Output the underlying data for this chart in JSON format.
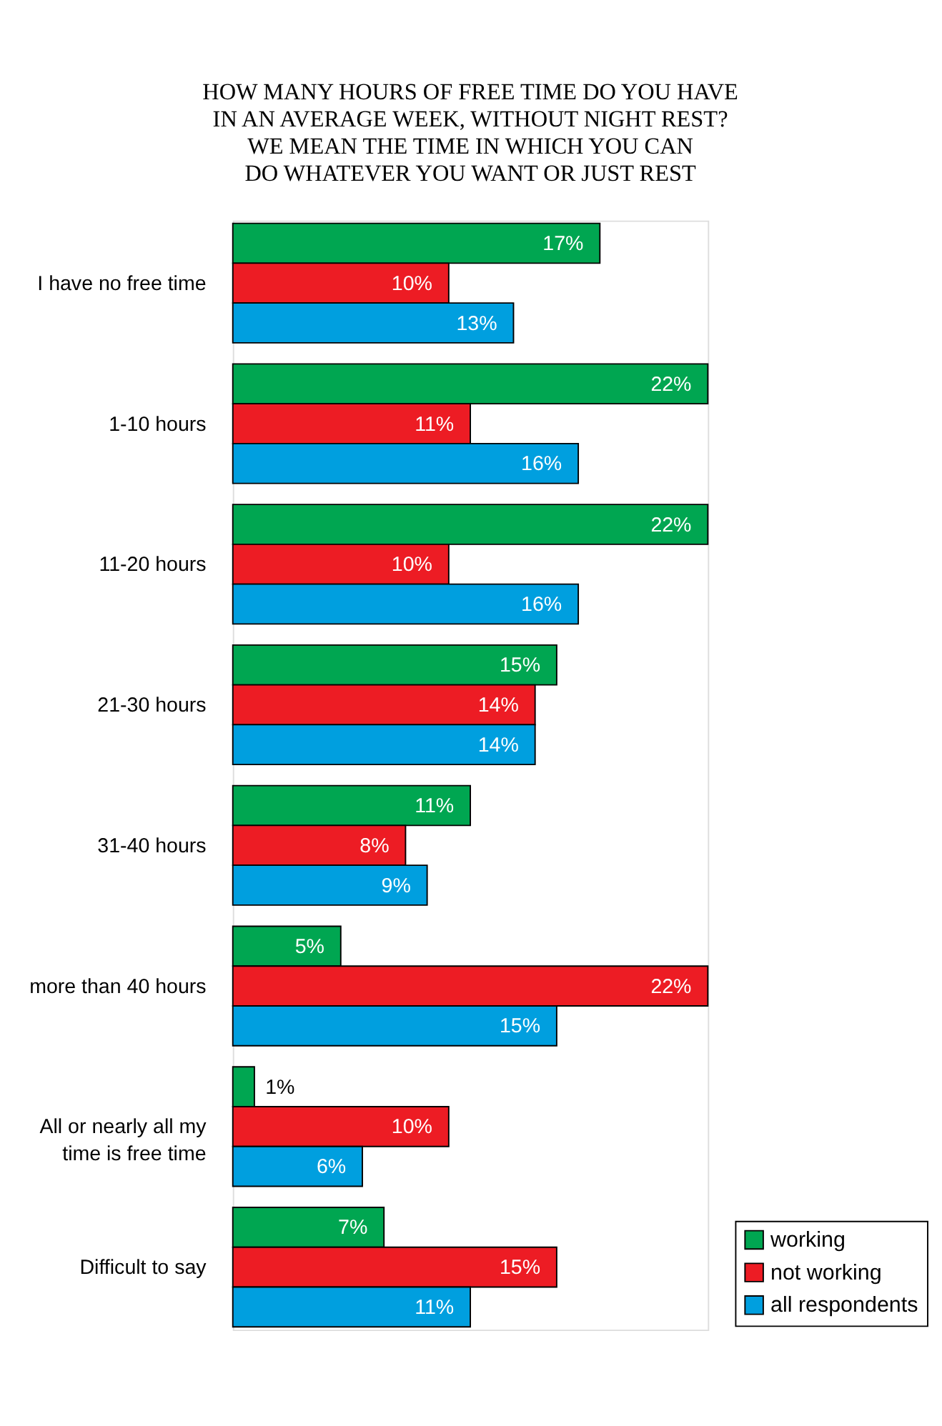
{
  "chart_data": {
    "type": "bar",
    "orientation": "horizontal",
    "title": "HOW MANY HOURS OF FREE TIME DO YOU HAVE\nIN AN AVERAGE WEEK, WITHOUT NIGHT REST?\nWE MEAN THE TIME IN WHICH YOU CAN\nDO WHATEVER YOU WANT OR JUST REST",
    "categories": [
      "I have no free time",
      "1-10 hours",
      "11-20 hours",
      "21-30 hours",
      "31-40 hours",
      "more than 40 hours",
      "All or nearly all my time is free time",
      "Difficult to say"
    ],
    "series": [
      {
        "name": "working",
        "color": "#00a651",
        "values": [
          17,
          22,
          22,
          15,
          11,
          5,
          1,
          7
        ],
        "value_labels": [
          "17%",
          "22%",
          "22%",
          "15%",
          "11%",
          "5%",
          "1%",
          "7%"
        ]
      },
      {
        "name": "not working",
        "color": "#ed1c24",
        "values": [
          10,
          11,
          10,
          14,
          8,
          22,
          10,
          15
        ],
        "value_labels": [
          "10%",
          "11%",
          "10%",
          "14%",
          "8%",
          "22%",
          "10%",
          "15%"
        ]
      },
      {
        "name": "all respondents",
        "color": "#009fdf",
        "values": [
          13,
          16,
          16,
          14,
          9,
          15,
          6,
          11
        ],
        "value_labels": [
          "13%",
          "16%",
          "16%",
          "14%",
          "9%",
          "15%",
          "6%",
          "11%"
        ]
      }
    ],
    "legend": "bottom right",
    "grid": false
  }
}
